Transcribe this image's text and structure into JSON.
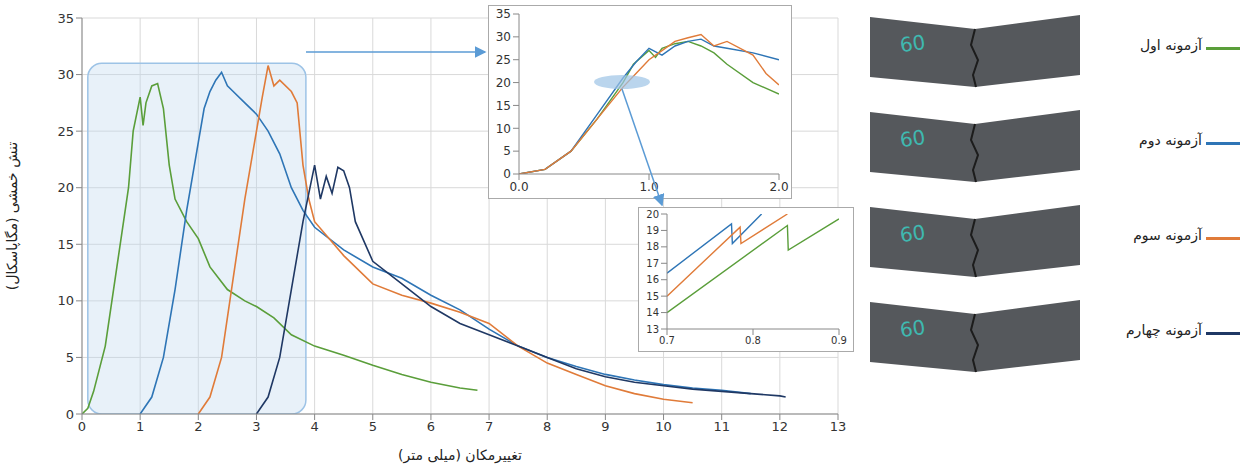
{
  "chart_data": [
    {
      "type": "line",
      "x_label": "تغییرمکان (میلی متر)",
      "y_label": "تنش خمشی (مگاپاسکال)",
      "xlim": [
        0,
        13
      ],
      "xticks": [
        0,
        1,
        2,
        3,
        4,
        5,
        6,
        7,
        8,
        9,
        10,
        11,
        12,
        13
      ],
      "ylim": [
        0,
        35
      ],
      "yticks": [
        0,
        5,
        10,
        15,
        20,
        25,
        30,
        35
      ],
      "grid": true,
      "legend": "right",
      "zoom_region": {
        "x": [
          0.1,
          3.85
        ],
        "y": [
          0,
          31
        ]
      },
      "series": [
        {
          "name": "آزمونه اول",
          "color": "#5a9e3a",
          "x": [
            0,
            0.1,
            0.2,
            0.4,
            0.6,
            0.8,
            0.88,
            1.0,
            1.05,
            1.1,
            1.2,
            1.3,
            1.4,
            1.5,
            1.6,
            1.8,
            2.0,
            2.2,
            2.5,
            2.8,
            3.0,
            3.3,
            3.6,
            4.0,
            4.5,
            5.0,
            5.5,
            6.0,
            6.5,
            6.8
          ],
          "values": [
            0,
            0.5,
            2,
            6,
            13,
            20,
            25,
            28,
            25.5,
            27.5,
            29,
            29.2,
            27,
            22,
            19,
            17,
            15.5,
            13,
            11,
            10,
            9.5,
            8.5,
            7,
            6,
            5.2,
            4.3,
            3.5,
            2.8,
            2.3,
            2.1
          ]
        },
        {
          "name": "آزمونه دوم",
          "color": "#2e75b6",
          "x": [
            1.0,
            1.2,
            1.4,
            1.6,
            1.8,
            1.9,
            2.0,
            2.1,
            2.2,
            2.3,
            2.4,
            2.5,
            2.6,
            2.8,
            3.0,
            3.2,
            3.4,
            3.6,
            3.8,
            4.0,
            4.5,
            5.0,
            5.5,
            6.0,
            6.5,
            7.0,
            7.5,
            8.0,
            8.5,
            9.0,
            9.5,
            10.0,
            10.5,
            11.0,
            11.5
          ],
          "values": [
            0,
            1.5,
            5,
            11,
            18,
            21,
            24,
            27,
            28.5,
            29.5,
            30.2,
            29,
            28.5,
            27.5,
            26.5,
            25,
            23,
            20,
            18,
            16.5,
            14.5,
            13,
            12,
            10.5,
            9.2,
            7.5,
            6,
            5,
            4.2,
            3.5,
            3,
            2.6,
            2.3,
            2.1,
            1.8
          ]
        },
        {
          "name": "آزمونه سوم",
          "color": "#e07b39",
          "x": [
            2.0,
            2.2,
            2.4,
            2.6,
            2.8,
            2.9,
            3.0,
            3.1,
            3.2,
            3.3,
            3.4,
            3.6,
            3.7,
            3.8,
            3.9,
            4.0,
            4.5,
            5.0,
            5.5,
            6.0,
            6.5,
            7.0,
            7.5,
            8.0,
            8.5,
            9.0,
            9.5,
            10.0,
            10.5
          ],
          "values": [
            0,
            1.5,
            5,
            12,
            19,
            22,
            25,
            28,
            30.8,
            29,
            29.5,
            28.5,
            27.5,
            22,
            19,
            17,
            14,
            11.5,
            10.5,
            9.8,
            9,
            8,
            6,
            4.5,
            3.5,
            2.5,
            1.8,
            1.3,
            1.0
          ]
        },
        {
          "name": "آزمونه چهارم",
          "color": "#1f3864",
          "x": [
            3.0,
            3.2,
            3.4,
            3.6,
            3.8,
            3.9,
            4.0,
            4.1,
            4.2,
            4.3,
            4.4,
            4.5,
            4.6,
            4.7,
            5.0,
            5.5,
            6.0,
            6.5,
            7.0,
            7.5,
            8.0,
            8.5,
            9.0,
            9.5,
            10.0,
            10.5,
            11.0,
            11.5,
            12.0,
            12.1
          ],
          "values": [
            0,
            1.5,
            5,
            11,
            17,
            19.5,
            22,
            19,
            21,
            19.5,
            21.8,
            21.5,
            20,
            17,
            13.5,
            11.5,
            9.5,
            8,
            7,
            6,
            5,
            4,
            3.3,
            2.8,
            2.5,
            2.2,
            2,
            1.8,
            1.6,
            1.5
          ]
        }
      ]
    },
    {
      "type": "line",
      "xlim": [
        0,
        2
      ],
      "xticks": [
        {
          "value": 0,
          "label": "0.0"
        },
        {
          "value": 1,
          "label": "1.0"
        },
        {
          "value": 2,
          "label": "2.0"
        }
      ],
      "ylim": [
        0,
        35
      ],
      "yticks": [
        0,
        5,
        10,
        15,
        20,
        25,
        30,
        35
      ],
      "grid": false,
      "series": [
        {
          "name": "آزمونه اول",
          "color": "#5a9e3a",
          "x": [
            0,
            0.2,
            0.4,
            0.6,
            0.8,
            0.88,
            1.0,
            1.05,
            1.1,
            1.2,
            1.3,
            1.4,
            1.5,
            1.6,
            1.8,
            2.0
          ],
          "values": [
            0,
            1,
            5,
            12,
            20,
            24,
            27,
            25.5,
            27.5,
            28.5,
            29,
            28,
            26.5,
            24,
            20,
            17.5
          ]
        },
        {
          "name": "آزمونه دوم",
          "color": "#2e75b6",
          "x": [
            0,
            0.2,
            0.4,
            0.6,
            0.8,
            0.9,
            1.0,
            1.1,
            1.2,
            1.3,
            1.4,
            1.5,
            1.6,
            1.8,
            2.0
          ],
          "values": [
            0,
            1,
            5,
            13,
            21,
            24.5,
            27.5,
            26,
            28,
            29,
            29.5,
            28,
            27.5,
            26.5,
            25
          ]
        },
        {
          "name": "آزمونه سوم",
          "color": "#e07b39",
          "x": [
            0,
            0.2,
            0.4,
            0.6,
            0.8,
            0.9,
            1.0,
            1.1,
            1.2,
            1.3,
            1.4,
            1.5,
            1.6,
            1.8,
            1.9,
            2.0
          ],
          "values": [
            0,
            1,
            5,
            12,
            19,
            22,
            25,
            27,
            29,
            29.8,
            30.5,
            28,
            29,
            26,
            22,
            19.5
          ]
        }
      ]
    },
    {
      "type": "line",
      "xlim": [
        0.7,
        0.9
      ],
      "xticks": [
        0.7,
        0.8,
        0.9
      ],
      "ylim": [
        13,
        20
      ],
      "yticks": [
        13,
        14,
        15,
        16,
        17,
        18,
        19,
        20
      ],
      "grid": false,
      "series": [
        {
          "name": "آزمونه دوم",
          "color": "#2e75b6",
          "x": [
            0.7,
            0.775,
            0.776,
            0.81
          ],
          "values": [
            16.4,
            19.4,
            18.2,
            20
          ]
        },
        {
          "name": "آزمونه سوم",
          "color": "#e07b39",
          "x": [
            0.7,
            0.785,
            0.786,
            0.84
          ],
          "values": [
            15,
            19.2,
            18.2,
            20
          ]
        },
        {
          "name": "آزمونه اول",
          "color": "#5a9e3a",
          "x": [
            0.7,
            0.84,
            0.841,
            0.9
          ],
          "values": [
            14,
            19.3,
            17.8,
            19.7
          ]
        }
      ]
    }
  ],
  "specimen_mark": "60"
}
